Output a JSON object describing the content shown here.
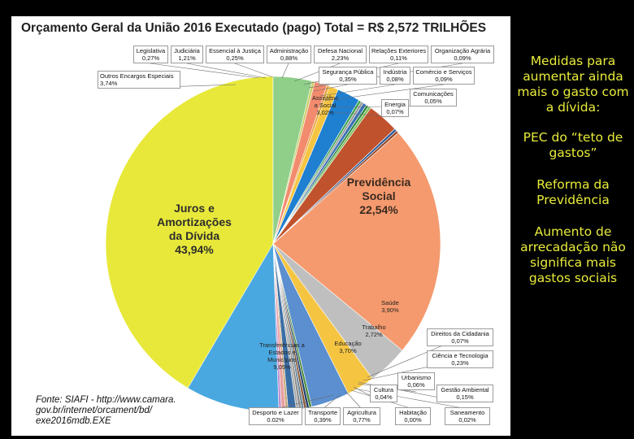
{
  "chart_data": {
    "type": "pie",
    "title": "Orçamento Geral da União 2016 Executado (pago) Total = R$ 2,572 TRILHÕES",
    "unit": "%",
    "slices": [
      {
        "name": "Juros e Amortizações da Dívida",
        "value": 43.94,
        "label": "43,94%",
        "color": "#e8e83a"
      },
      {
        "name": "Outros Encargos Especiais",
        "value": 3.74,
        "label": "3,74%",
        "color": "#8fcf8a"
      },
      {
        "name": "Legislativa",
        "value": 0.27,
        "label": "0,27%",
        "color": "#c9cf6a"
      },
      {
        "name": "Judiciária",
        "value": 1.21,
        "label": "1,21%",
        "color": "#f28b6e"
      },
      {
        "name": "Essencial à Justiça",
        "value": 0.25,
        "label": "0,25%",
        "color": "#e6a23a"
      },
      {
        "name": "Administração",
        "value": 0.88,
        "label": "0,88%",
        "color": "#f5c542"
      },
      {
        "name": "Defesa Nacional",
        "value": 2.23,
        "label": "2,23%",
        "color": "#1f7fd1"
      },
      {
        "name": "Relações Exteriores",
        "value": 0.11,
        "label": "0,11%",
        "color": "#3aa54a"
      },
      {
        "name": "Organização Agrária",
        "value": 0.09,
        "label": "0,09%",
        "color": "#9a9a9a"
      },
      {
        "name": "Segurança Pública",
        "value": 0.35,
        "label": "0,35%",
        "color": "#3a70b5"
      },
      {
        "name": "Indústria",
        "value": 0.08,
        "label": "0,08%",
        "color": "#2d8a3e"
      },
      {
        "name": "Comércio e Serviços",
        "value": 0.09,
        "label": "0,09%",
        "color": "#7fbf5a"
      },
      {
        "name": "Assistência Social",
        "value": 3.02,
        "label": "3,02%",
        "color": "#c0522d"
      },
      {
        "name": "Comunicações",
        "value": 0.05,
        "label": "0,05%",
        "color": "#2a5a9a"
      },
      {
        "name": "Energia",
        "value": 0.07,
        "label": "0,07%",
        "color": "#9a4a2a"
      },
      {
        "name": "Previdência Social",
        "value": 22.54,
        "label": "22,54%",
        "color": "#f59a6e"
      },
      {
        "name": "Saúde",
        "value": 3.9,
        "label": "3,90%",
        "color": "#bfbfbf"
      },
      {
        "name": "Trabalho",
        "value": 2.72,
        "label": "2,72%",
        "color": "#f5c542"
      },
      {
        "name": "Educação",
        "value": 3.7,
        "label": "3,70%",
        "color": "#5b8fcf"
      },
      {
        "name": "Direitos da Cidadania",
        "value": 0.07,
        "label": "0,07%",
        "color": "#4a8a3a"
      },
      {
        "name": "Ciência e Tecnologia",
        "value": 0.23,
        "label": "0,23%",
        "color": "#1f3f6e"
      },
      {
        "name": "Urbanismo",
        "value": 0.06,
        "label": "0,06%",
        "color": "#8a5a3a"
      },
      {
        "name": "Gestão Ambiental",
        "value": 0.15,
        "label": "0,15%",
        "color": "#6a8a9a"
      },
      {
        "name": "Saneamento",
        "value": 0.02,
        "label": "0,02%",
        "color": "#8a8a8a"
      },
      {
        "name": "Habitação",
        "value": 0.0,
        "label": "0,00%",
        "color": "#aaaaaa"
      },
      {
        "name": "Agricultura",
        "value": 0.77,
        "label": "0,77%",
        "color": "#3a6ea5"
      },
      {
        "name": "Cultura",
        "value": 0.04,
        "label": "0,04%",
        "color": "#c9a97a"
      },
      {
        "name": "Transporte",
        "value": 0.39,
        "label": "0,39%",
        "color": "#e8a0a0"
      },
      {
        "name": "Desporto e Lazer",
        "value": 0.02,
        "label": "0,02%",
        "color": "#bf8fcf"
      },
      {
        "name": "Transferências a Estados e Municípios",
        "value": 9.05,
        "label": "9,05%",
        "color": "#4aa8e0"
      }
    ]
  },
  "labels": {
    "legislativa": [
      "Legislativa",
      "0,27%"
    ],
    "judiciaria": [
      "Judiciária",
      "1,21%"
    ],
    "essencial": [
      "Essencial à Justiça",
      "0,25%"
    ],
    "administracao": [
      "Administração",
      "0,88%"
    ],
    "defesa": [
      "Defesa Nacional",
      "2,23%"
    ],
    "relacoes": [
      "Relações Exteriores",
      "0,11%"
    ],
    "agraria": [
      "Organização Agrária",
      "0,09%"
    ],
    "outros": [
      "Outros Encargos Especiais",
      "3,74%"
    ],
    "seguranca": [
      "Segurança Pública",
      "0,35%"
    ],
    "industria": [
      "Indústria",
      "0,08%"
    ],
    "comercio": [
      "Comércio e Serviços",
      "0,09%"
    ],
    "comunicacoes": [
      "Comunicações",
      "0,05%"
    ],
    "energia": [
      "Energia",
      "0,07%"
    ],
    "cidadania": [
      "Direitos da Cidadania",
      "0,07%"
    ],
    "ciencia": [
      "Ciência e Tecnologia",
      "0,23%"
    ],
    "urbanismo": [
      "Urbanismo",
      "0,06%"
    ],
    "cultura": [
      "Cultura",
      "0,04%"
    ],
    "gestao": [
      "Gestão Ambiental",
      "0,15%"
    ],
    "desporto": [
      "Desporto e Lazer",
      "0.02%"
    ],
    "transporte": [
      "Transporte",
      "0,39%"
    ],
    "agricultura": [
      "Agricultura",
      "0,77%"
    ],
    "habitacao": [
      "Habitação",
      "0,00%"
    ],
    "saneamento": [
      "Saneamento",
      "0,02%"
    ]
  },
  "inline_labels": {
    "juros": [
      "Juros e",
      "Amortizações",
      "da Dívida",
      "43,94%"
    ],
    "previdencia": [
      "Previdência",
      "Social",
      "22,54%"
    ],
    "assistencia": [
      "Assistênc",
      "a Social",
      "3,02%"
    ],
    "saude": [
      "Saúde",
      "3,90%"
    ],
    "trabalho": [
      "Trabalho",
      "2,72%"
    ],
    "educacao": [
      "Educação",
      "3,70%"
    ],
    "transferencias": [
      "Transferências a",
      "Estados e",
      "Municípios",
      "9,05%"
    ]
  },
  "source_lines": [
    "Fonte: SIAFI - http://www.camara.",
    "gov.br/internet/orcament/bd/",
    "exe2016mdb.EXE"
  ],
  "side_text": [
    "Medidas para aumentar ainda mais o gasto com a dívida:",
    "PEC do “teto de gastos”",
    "Reforma da Previdência",
    "Aumento de arrecadação não significa mais gastos sociais"
  ]
}
